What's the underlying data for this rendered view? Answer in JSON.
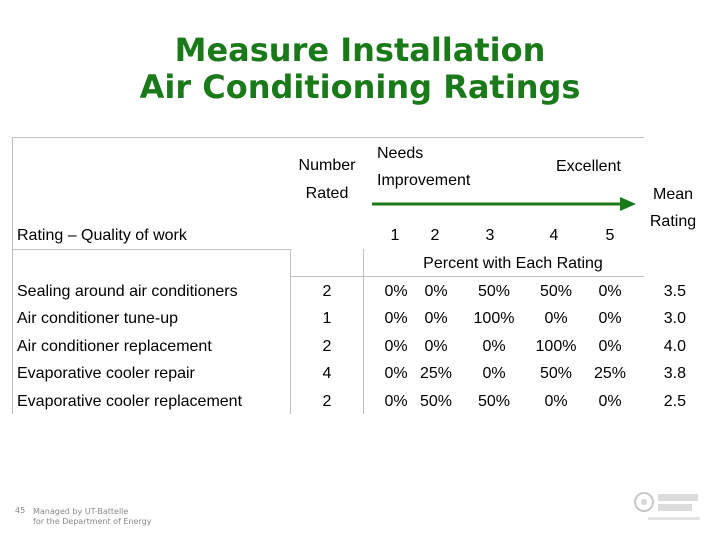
{
  "title": {
    "line1": "Measure Installation",
    "line2": "Air Conditioning Ratings"
  },
  "header": {
    "number_rated_line1": "Number",
    "number_rated_line2": "Rated",
    "needs_line1": "Needs",
    "needs_line2": "Improvement",
    "excellent": "Excellent",
    "mean_line1": "Mean",
    "mean_line2": "Rating",
    "rating_label": "Rating – Quality of work",
    "scale": [
      "1",
      "2",
      "3",
      "4",
      "5"
    ],
    "percent_caption": "Percent with Each Rating"
  },
  "rows": [
    {
      "label": "Sealing around air conditioners",
      "number": "2",
      "pcts": [
        "0%",
        "0%",
        "50%",
        "50%",
        "0%"
      ],
      "mean": "3.5"
    },
    {
      "label": "Air conditioner tune-up",
      "number": "1",
      "pcts": [
        "0%",
        "0%",
        "100%",
        "0%",
        "0%"
      ],
      "mean": "3.0"
    },
    {
      "label": "Air conditioner replacement",
      "number": "2",
      "pcts": [
        "0%",
        "0%",
        "0%",
        "100%",
        "0%"
      ],
      "mean": "4.0"
    },
    {
      "label": "Evaporative cooler repair",
      "number": "4",
      "pcts": [
        "0%",
        "25%",
        "0%",
        "50%",
        "25%"
      ],
      "mean": "3.8"
    },
    {
      "label": "Evaporative cooler replacement",
      "number": "2",
      "pcts": [
        "0%",
        "50%",
        "50%",
        "0%",
        "0%"
      ],
      "mean": "2.5"
    }
  ],
  "footer": {
    "page": "45",
    "line1": "Managed by UT-Battelle",
    "line2": "for the Department of Energy"
  },
  "colors": {
    "title": "#1a7a1a",
    "arrow": "#1a7a1a",
    "grid": "#bfbfbf"
  }
}
